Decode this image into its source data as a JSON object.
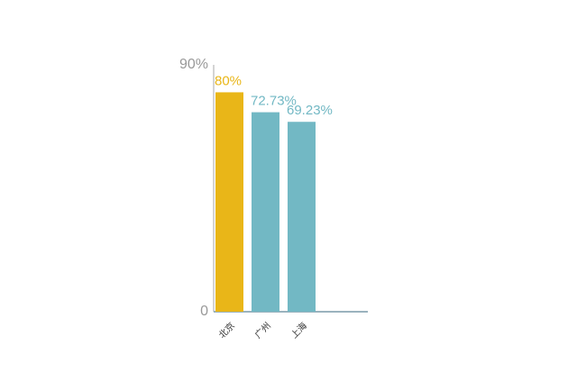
{
  "chart_data": {
    "type": "bar",
    "categories": [
      "北京",
      "广州",
      "上海"
    ],
    "values": [
      80,
      72.73,
      69.23
    ],
    "value_labels": [
      "80%",
      "72.73%",
      "69.23%"
    ],
    "colors": [
      "#e9b618",
      "#72b8c4",
      "#72b8c4"
    ],
    "ylim": [
      0,
      90
    ],
    "yticks": [
      0,
      {
        "value": 90,
        "label": "90%"
      }
    ]
  }
}
